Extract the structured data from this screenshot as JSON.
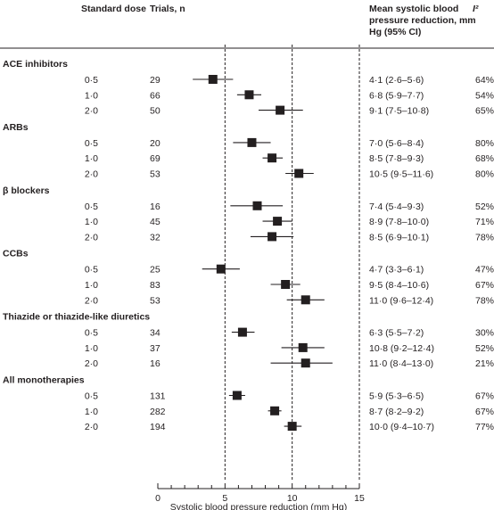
{
  "headers": {
    "dose": "Standard dose",
    "trials": "Trials, n",
    "effect": "Mean systolic blood pressure reduction, mm Hg (95% CI)",
    "i2": "I²"
  },
  "chart_data": {
    "type": "forest",
    "xlabel": "Systolic blood pressure reduction (mm Hg)",
    "xlim": [
      0,
      15
    ],
    "xticks": [
      "0",
      "5",
      "10",
      "15"
    ],
    "reference_lines": [
      5,
      10,
      15
    ],
    "groups": [
      {
        "name": "ACE inhibitors",
        "rows": [
          {
            "dose": "0·5",
            "trials": "29",
            "label": "4·1 (2·6–5·6)",
            "i2": "64%",
            "mean": 4.1,
            "lo": 2.6,
            "hi": 5.6
          },
          {
            "dose": "1·0",
            "trials": "66",
            "label": "6·8 (5·9–7·7)",
            "i2": "54%",
            "mean": 6.8,
            "lo": 5.9,
            "hi": 7.7
          },
          {
            "dose": "2·0",
            "trials": "50",
            "label": "9·1 (7·5–10·8)",
            "i2": "65%",
            "mean": 9.1,
            "lo": 7.5,
            "hi": 10.8
          }
        ]
      },
      {
        "name": "ARBs",
        "rows": [
          {
            "dose": "0·5",
            "trials": "20",
            "label": "7·0 (5·6–8·4)",
            "i2": "80%",
            "mean": 7.0,
            "lo": 5.6,
            "hi": 8.4
          },
          {
            "dose": "1·0",
            "trials": "69",
            "label": "8·5 (7·8–9·3)",
            "i2": "68%",
            "mean": 8.5,
            "lo": 7.8,
            "hi": 9.3
          },
          {
            "dose": "2·0",
            "trials": "53",
            "label": "10·5 (9·5–11·6)",
            "i2": "80%",
            "mean": 10.5,
            "lo": 9.5,
            "hi": 11.6
          }
        ]
      },
      {
        "name": "β blockers",
        "rows": [
          {
            "dose": "0·5",
            "trials": "16",
            "label": "7·4 (5·4–9·3)",
            "i2": "52%",
            "mean": 7.4,
            "lo": 5.4,
            "hi": 9.3
          },
          {
            "dose": "1·0",
            "trials": "45",
            "label": "8·9 (7·8–10·0)",
            "i2": "71%",
            "mean": 8.9,
            "lo": 7.8,
            "hi": 10.0
          },
          {
            "dose": "2·0",
            "trials": "32",
            "label": "8·5 (6·9–10·1)",
            "i2": "78%",
            "mean": 8.5,
            "lo": 6.9,
            "hi": 10.1
          }
        ]
      },
      {
        "name": "CCBs",
        "rows": [
          {
            "dose": "0·5",
            "trials": "25",
            "label": "4·7 (3·3–6·1)",
            "i2": "47%",
            "mean": 4.7,
            "lo": 3.3,
            "hi": 6.1
          },
          {
            "dose": "1·0",
            "trials": "83",
            "label": "9·5 (8·4–10·6)",
            "i2": "67%",
            "mean": 9.5,
            "lo": 8.4,
            "hi": 10.6
          },
          {
            "dose": "2·0",
            "trials": "53",
            "label": "11·0 (9·6–12·4)",
            "i2": "78%",
            "mean": 11.0,
            "lo": 9.6,
            "hi": 12.4
          }
        ]
      },
      {
        "name": "Thiazide or thiazide-like diuretics",
        "rows": [
          {
            "dose": "0·5",
            "trials": "34",
            "label": "6·3 (5·5–7·2)",
            "i2": "30%",
            "mean": 6.3,
            "lo": 5.5,
            "hi": 7.2
          },
          {
            "dose": "1·0",
            "trials": "37",
            "label": "10·8 (9·2–12·4)",
            "i2": "52%",
            "mean": 10.8,
            "lo": 9.2,
            "hi": 12.4
          },
          {
            "dose": "2·0",
            "trials": "16",
            "label": "11·0 (8·4–13·0)",
            "i2": "21%",
            "mean": 11.0,
            "lo": 8.4,
            "hi": 13.0
          }
        ]
      },
      {
        "name": "All monotherapies",
        "rows": [
          {
            "dose": "0·5",
            "trials": "131",
            "label": "5·9 (5·3–6·5)",
            "i2": "67%",
            "mean": 5.9,
            "lo": 5.3,
            "hi": 6.5
          },
          {
            "dose": "1·0",
            "trials": "282",
            "label": "8·7 (8·2–9·2)",
            "i2": "67%",
            "mean": 8.7,
            "lo": 8.2,
            "hi": 9.2
          },
          {
            "dose": "2·0",
            "trials": "194",
            "label": "10·0 (9·4–10·7)",
            "i2": "77%",
            "mean": 10.0,
            "lo": 9.4,
            "hi": 10.7
          }
        ]
      }
    ]
  }
}
